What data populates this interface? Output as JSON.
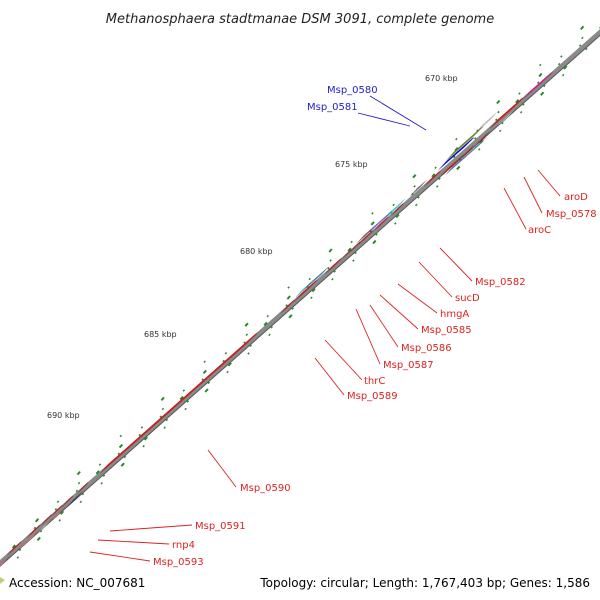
{
  "title": "Methanosphaera stadtmanae DSM 3091, complete genome",
  "footer": {
    "accession": "Accession: NC_007681",
    "topology": "Topology: circular; Length: 1,767,403 bp; Genes: 1,586"
  },
  "colors": {
    "backbone": "#8a8a8a",
    "tick": "#2a8a2a",
    "gene_red": "#ee1111",
    "label_red": "#dd2222",
    "label_blue": "#2222cc",
    "olive": "#6b8e23",
    "blue": "#0b0bdd",
    "steel": "#4a82b8",
    "cyan": "#16e6ee",
    "violet": "#7b68ee",
    "darkgray": "#707070",
    "lightgray": "#c8c8c8",
    "pink": "#f07a8a",
    "magenta": "#ff1493",
    "navy": "#3a3a8a"
  },
  "kbp_labels": [
    "670 kbp",
    "675 kbp",
    "680 kbp",
    "685 kbp",
    "690 kbp"
  ],
  "gene_labels": [
    {
      "name": "Msp_0580",
      "color": "blue"
    },
    {
      "name": "Msp_0581",
      "color": "blue"
    },
    {
      "name": "aroD",
      "color": "red"
    },
    {
      "name": "Msp_0578",
      "color": "red"
    },
    {
      "name": "aroC",
      "color": "red"
    },
    {
      "name": "Msp_0582",
      "color": "red"
    },
    {
      "name": "sucD",
      "color": "red"
    },
    {
      "name": "hmgA",
      "color": "red"
    },
    {
      "name": "Msp_0585",
      "color": "red"
    },
    {
      "name": "Msp_0586",
      "color": "red"
    },
    {
      "name": "Msp_0587",
      "color": "red"
    },
    {
      "name": "thrC",
      "color": "red"
    },
    {
      "name": "Msp_0589",
      "color": "red"
    },
    {
      "name": "Msp_0590",
      "color": "red"
    },
    {
      "name": "Msp_0591",
      "color": "red"
    },
    {
      "name": "rnp4",
      "color": "red"
    },
    {
      "name": "Msp_0593",
      "color": "red"
    }
  ]
}
